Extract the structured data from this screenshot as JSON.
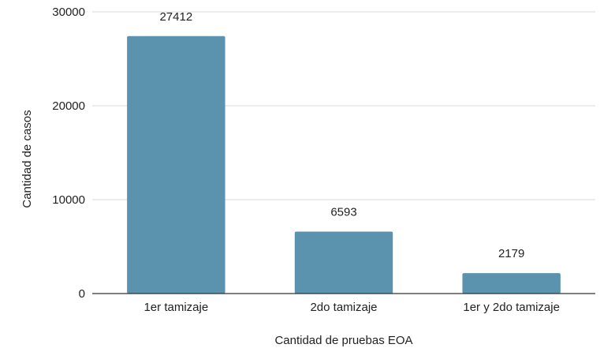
{
  "chart_data": {
    "type": "bar",
    "categories": [
      "1er tamizaje",
      "2do tamizaje",
      "1er y 2do tamizaje"
    ],
    "values": [
      27412,
      6593,
      2179
    ],
    "data_labels": [
      "27412",
      "6593",
      "2179"
    ],
    "title": "",
    "xlabel": "Cantidad de pruebas EOA",
    "ylabel": "Cantidad de casos",
    "ylim": [
      0,
      30000
    ],
    "yticks": [
      0,
      10000,
      20000,
      30000
    ],
    "ytick_labels": [
      "0",
      "10000",
      "20000",
      "30000"
    ],
    "grid": true,
    "legend": "none",
    "colors": {
      "bar": "#5b93ae",
      "grid": "#d9d9d9",
      "axis": "#333333"
    }
  }
}
